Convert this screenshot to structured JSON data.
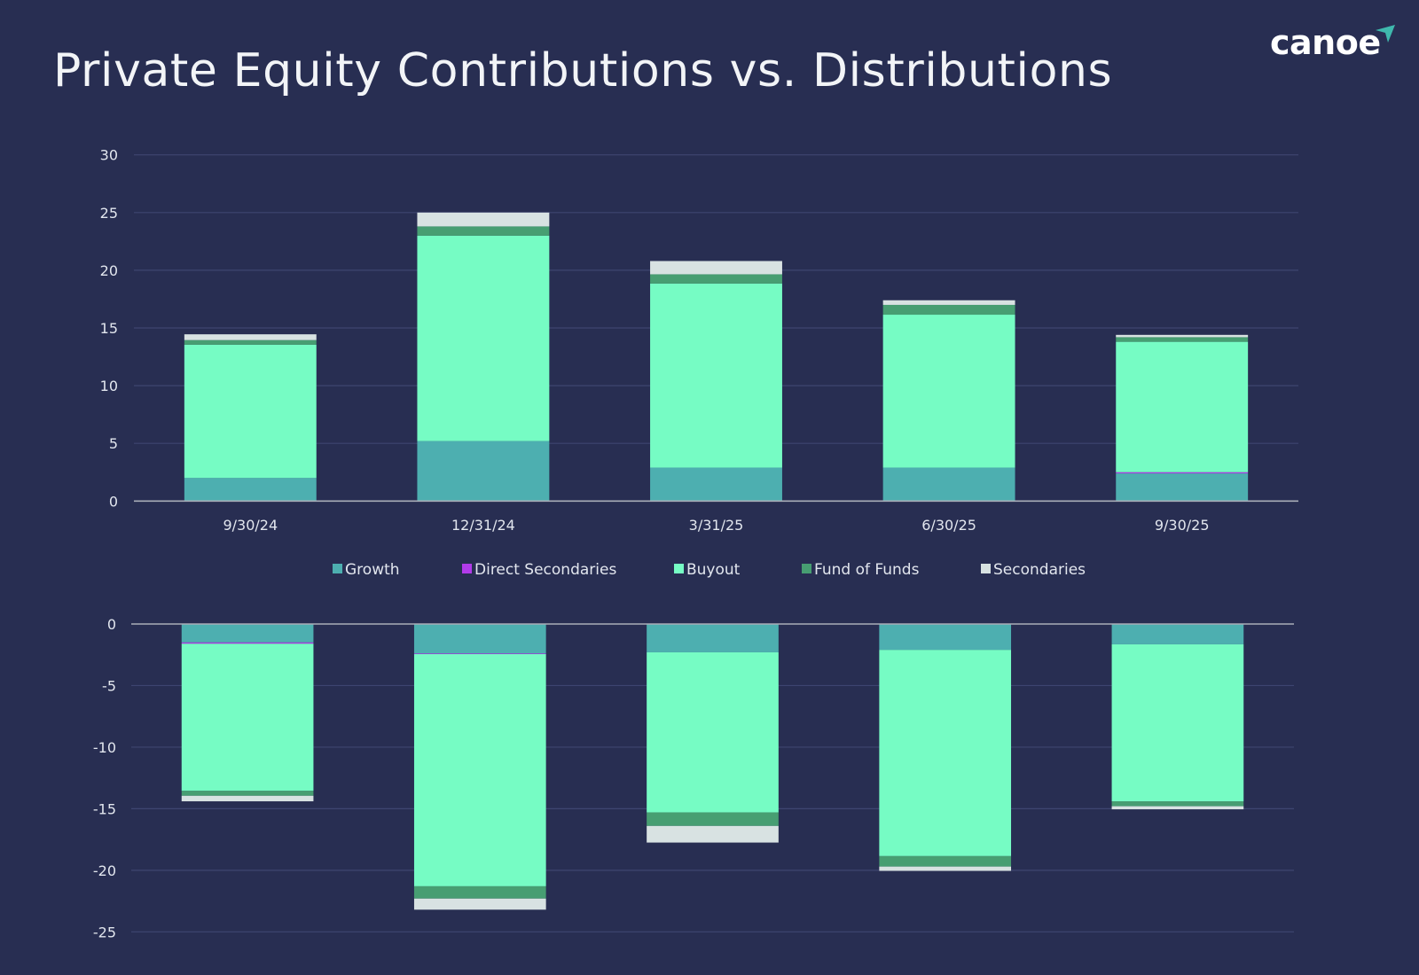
{
  "header": {
    "title": "Private Equity Contributions vs. Distributions",
    "logo_text": "canoe"
  },
  "colors": {
    "background": "#282e52",
    "Growth": "#4dafb0",
    "Direct Secondaries": "#b23bea",
    "Buyout": "#76fcc4",
    "Fund of Funds": "#479e72",
    "Secondaries": "#d8e2e2",
    "logo_accent": "#3fb8ad"
  },
  "chart_data": [
    {
      "type": "bar",
      "stacked": true,
      "title": "",
      "xlabel": "",
      "ylabel": "",
      "categories": [
        "9/30/24",
        "12/31/24",
        "3/31/25",
        "6/30/25",
        "9/30/25"
      ],
      "show_category_labels": true,
      "ylim": [
        0,
        30
      ],
      "yticks": [
        0,
        5,
        10,
        15,
        20,
        25,
        30
      ],
      "grid": true,
      "legend": "bottom",
      "series": [
        {
          "name": "Growth",
          "values": [
            2.0,
            5.2,
            2.9,
            2.9,
            2.4
          ]
        },
        {
          "name": "Direct Secondaries",
          "values": [
            0,
            0,
            0,
            0,
            0.1
          ]
        },
        {
          "name": "Buyout",
          "values": [
            11.55,
            17.8,
            15.95,
            13.25,
            11.3
          ]
        },
        {
          "name": "Fund of Funds",
          "values": [
            0.4,
            0.8,
            0.8,
            0.85,
            0.4
          ]
        },
        {
          "name": "Secondaries",
          "values": [
            0.5,
            1.2,
            1.15,
            0.4,
            0.2
          ]
        }
      ]
    },
    {
      "type": "bar",
      "stacked": true,
      "title": "",
      "xlabel": "",
      "ylabel": "",
      "categories": [
        "9/30/24",
        "12/31/24",
        "3/31/25",
        "6/30/25",
        "9/30/25"
      ],
      "show_category_labels": false,
      "ylim": [
        -25,
        0
      ],
      "yticks": [
        0,
        -5,
        -10,
        -15,
        -20,
        -25
      ],
      "grid": true,
      "series": [
        {
          "name": "Growth",
          "values": [
            -1.5,
            -2.4,
            -2.3,
            -2.1,
            -1.65
          ]
        },
        {
          "name": "Direct Secondaries",
          "values": [
            -0.1,
            -0.05,
            0,
            0,
            0
          ]
        },
        {
          "name": "Buyout",
          "values": [
            -11.95,
            -18.85,
            -13.0,
            -16.75,
            -12.75
          ]
        },
        {
          "name": "Fund of Funds",
          "values": [
            -0.4,
            -1.0,
            -1.1,
            -0.85,
            -0.4
          ]
        },
        {
          "name": "Secondaries",
          "values": [
            -0.45,
            -0.9,
            -1.35,
            -0.35,
            -0.25
          ]
        }
      ]
    }
  ]
}
